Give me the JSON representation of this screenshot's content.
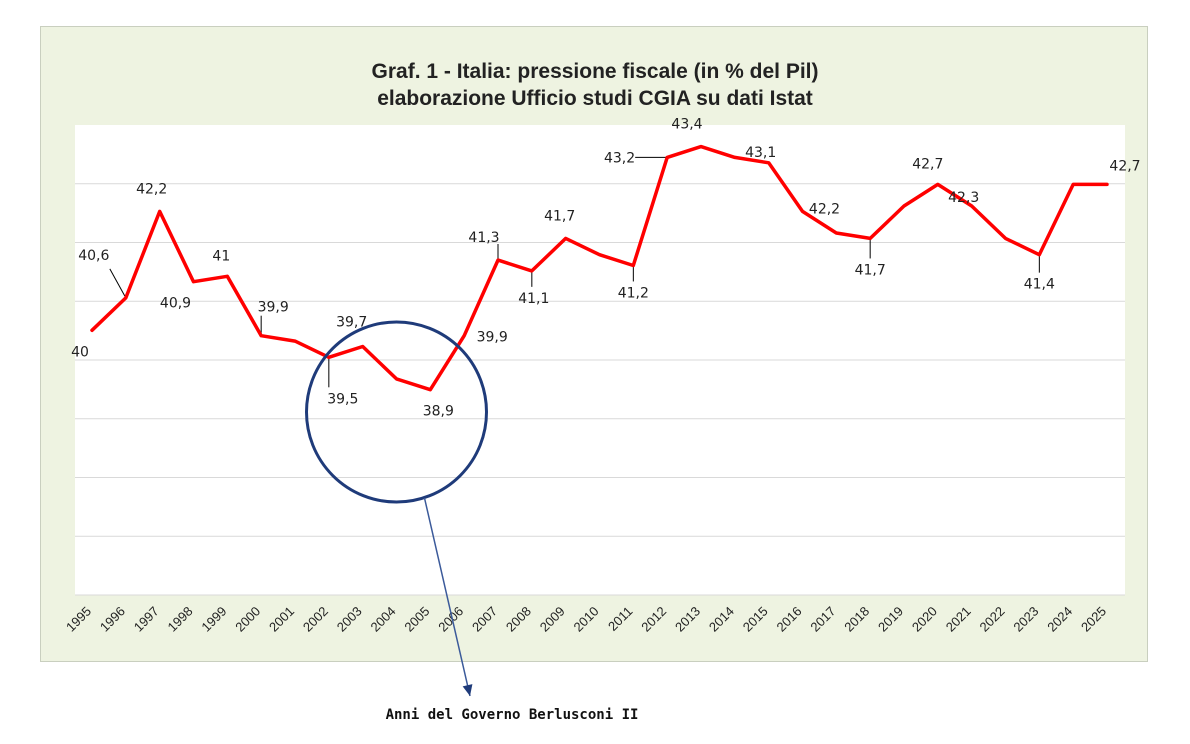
{
  "chart_data": {
    "type": "line",
    "title": "Graf. 1 - Italia: pressione fiscale (in % del Pil)",
    "subtitle": "elaborazione Ufficio studi CGIA su dati Istat",
    "xlabel": "",
    "ylabel": "",
    "grid": true,
    "legend": "none",
    "ylim": [
      35.1,
      43.8
    ],
    "x": [
      "1995",
      "1996",
      "1997",
      "1998",
      "1999",
      "2000",
      "2001",
      "2002",
      "2003",
      "2004",
      "2005",
      "2006",
      "2007",
      "2008",
      "2009",
      "2010",
      "2011",
      "2012",
      "2013",
      "2014",
      "2015",
      "2016",
      "2017",
      "2018",
      "2019",
      "2020",
      "2021",
      "2022",
      "2023",
      "2024",
      "2025"
    ],
    "series": [
      {
        "values": [
          40.0,
          40.6,
          42.2,
          40.9,
          41.0,
          39.9,
          39.8,
          39.5,
          39.7,
          39.1,
          38.9,
          39.9,
          41.3,
          41.1,
          41.7,
          41.4,
          41.2,
          43.2,
          43.4,
          43.2,
          43.1,
          42.2,
          41.8,
          41.7,
          42.3,
          42.7,
          42.3,
          41.7,
          41.4,
          42.7,
          42.7
        ],
        "color": "#ff0000"
      }
    ],
    "data_labels": [
      {
        "index": 0,
        "text": "40"
      },
      {
        "index": 1,
        "text": "40,6"
      },
      {
        "index": 2,
        "text": "42,2"
      },
      {
        "index": 3,
        "text": "40,9"
      },
      {
        "index": 4,
        "text": "41"
      },
      {
        "index": 5,
        "text": "39,9"
      },
      {
        "index": 7,
        "text": "39,5"
      },
      {
        "index": 8,
        "text": "39,7"
      },
      {
        "index": 10,
        "text": "38,9"
      },
      {
        "index": 11,
        "text": "39,9"
      },
      {
        "index": 12,
        "text": "41,3"
      },
      {
        "index": 13,
        "text": "41,1"
      },
      {
        "index": 14,
        "text": "41,7"
      },
      {
        "index": 16,
        "text": "41,2"
      },
      {
        "index": 17,
        "text": "43,2"
      },
      {
        "index": 18,
        "text": "43,4"
      },
      {
        "index": 20,
        "text": "43,1"
      },
      {
        "index": 21,
        "text": "42,2"
      },
      {
        "index": 23,
        "text": "41,7"
      },
      {
        "index": 25,
        "text": "42,7"
      },
      {
        "index": 26,
        "text": "42,3"
      },
      {
        "index": 28,
        "text": "41,4"
      },
      {
        "index": 30,
        "text": "42,7"
      }
    ],
    "annotation": {
      "text": "Anni del Governo Berlusconi II",
      "highlight_from": "2002",
      "highlight_to": "2006",
      "circle_color": "#1f3b7a",
      "arrow_color": "#3b5a9a"
    },
    "colors": {
      "frame_bg": "#eef3e1",
      "plot_bg": "#ffffff",
      "grid": "#d9d9d9"
    }
  }
}
